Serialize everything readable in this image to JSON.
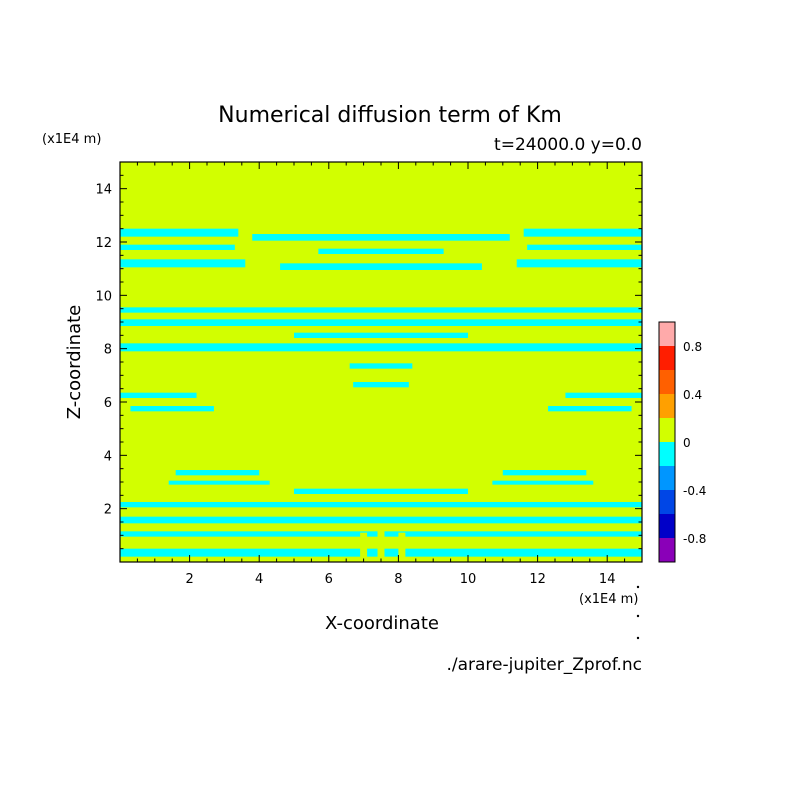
{
  "chart_data": {
    "type": "heatmap",
    "title": "Numerical diffusion term of Km",
    "subtitle": "t=24000.0 y=0.0",
    "xlabel": "X-coordinate",
    "ylabel": "Z-coordinate",
    "x_unit_label": "(x1E4 m)",
    "y_unit_label": "(x1E4 m)",
    "source_label": "./arare-jupiter_Zprof.nc",
    "xlim": [
      0,
      15
    ],
    "ylim": [
      0,
      15
    ],
    "x_ticks": [
      2,
      4,
      6,
      8,
      10,
      12,
      14
    ],
    "y_ticks": [
      2,
      4,
      6,
      8,
      10,
      12,
      14
    ],
    "colorbar": {
      "levels": [
        -1.0,
        -0.8,
        -0.6,
        -0.4,
        -0.2,
        0.0,
        0.2,
        0.4,
        0.6,
        0.8,
        1.0
      ],
      "colors": [
        "#8a00b8",
        "#0000c8",
        "#0046e6",
        "#0096ff",
        "#00ffff",
        "#d2ff00",
        "#ffa000",
        "#ff6000",
        "#ff1e00",
        "#ffaaaa"
      ],
      "tick_labels": [
        "-0.8",
        "-0.4",
        "0",
        "0.4",
        "0.8"
      ],
      "tick_values": [
        -0.8,
        -0.4,
        0.0,
        0.4,
        0.8
      ]
    },
    "background_value": 0.1,
    "negative_regions": [
      {
        "x": [
          0,
          3.4
        ],
        "y": [
          12.2,
          12.5
        ]
      },
      {
        "x": [
          0,
          3.3
        ],
        "y": [
          11.7,
          11.9
        ]
      },
      {
        "x": [
          0,
          3.6
        ],
        "y": [
          11.05,
          11.35
        ]
      },
      {
        "x": [
          11.6,
          15
        ],
        "y": [
          12.2,
          12.5
        ]
      },
      {
        "x": [
          11.7,
          15
        ],
        "y": [
          11.7,
          11.9
        ]
      },
      {
        "x": [
          11.4,
          15
        ],
        "y": [
          11.05,
          11.35
        ]
      },
      {
        "x": [
          3.8,
          11.2
        ],
        "y": [
          12.05,
          12.3
        ]
      },
      {
        "x": [
          5.7,
          9.3
        ],
        "y": [
          11.55,
          11.75
        ]
      },
      {
        "x": [
          4.6,
          10.4
        ],
        "y": [
          10.95,
          11.2
        ]
      },
      {
        "x": [
          0,
          15
        ],
        "y": [
          9.35,
          9.55
        ]
      },
      {
        "x": [
          0,
          15
        ],
        "y": [
          8.85,
          9.1
        ]
      },
      {
        "x": [
          5.0,
          10.0
        ],
        "y": [
          8.4,
          8.6
        ]
      },
      {
        "x": [
          0,
          15
        ],
        "y": [
          7.9,
          8.2
        ]
      },
      {
        "x": [
          6.6,
          8.4
        ],
        "y": [
          7.25,
          7.45
        ]
      },
      {
        "x": [
          6.7,
          8.3
        ],
        "y": [
          6.55,
          6.75
        ]
      },
      {
        "x": [
          0,
          2.2
        ],
        "y": [
          6.15,
          6.35
        ]
      },
      {
        "x": [
          0.3,
          2.7
        ],
        "y": [
          5.65,
          5.85
        ]
      },
      {
        "x": [
          12.8,
          15
        ],
        "y": [
          6.15,
          6.35
        ]
      },
      {
        "x": [
          12.3,
          14.7
        ],
        "y": [
          5.65,
          5.85
        ]
      },
      {
        "x": [
          1.6,
          4.0
        ],
        "y": [
          3.25,
          3.45
        ]
      },
      {
        "x": [
          1.4,
          4.3
        ],
        "y": [
          2.9,
          3.05
        ]
      },
      {
        "x": [
          11.0,
          13.4
        ],
        "y": [
          3.25,
          3.45
        ]
      },
      {
        "x": [
          10.7,
          13.6
        ],
        "y": [
          2.9,
          3.05
        ]
      },
      {
        "x": [
          5.0,
          10.0
        ],
        "y": [
          2.55,
          2.75
        ]
      },
      {
        "x": [
          0,
          15
        ],
        "y": [
          2.05,
          2.25
        ]
      },
      {
        "x": [
          0,
          15
        ],
        "y": [
          1.45,
          1.7
        ]
      },
      {
        "x": [
          0,
          15
        ],
        "y": [
          0.95,
          1.15
        ]
      },
      {
        "x": [
          0,
          15
        ],
        "y": [
          0.2,
          0.5
        ]
      }
    ],
    "positive_gaps": [
      {
        "x": [
          6.9,
          7.1
        ],
        "y": [
          0,
          1.1
        ]
      },
      {
        "x": [
          7.4,
          7.6
        ],
        "y": [
          0,
          1.2
        ]
      },
      {
        "x": [
          8.0,
          8.2
        ],
        "y": [
          0,
          1.1
        ]
      }
    ]
  }
}
